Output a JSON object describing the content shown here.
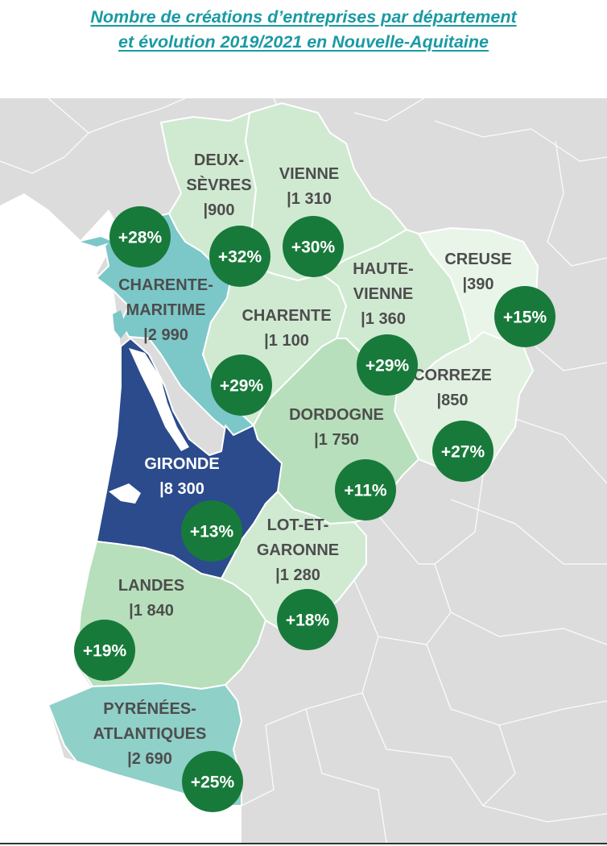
{
  "title": {
    "line1": "Nombre de créations d’entreprises par département",
    "line2": "et évolution 2019/2021 en Nouvelle-Aquitaine"
  },
  "colors": {
    "background_land": "#dcdcdc",
    "borders": "#ffffff",
    "badge": "#187a3a",
    "title": "#1a9aa3",
    "label": "#4d4d4d"
  },
  "departments": [
    {
      "id": "deux-sevres",
      "name_lines": [
        "DEUX-",
        "SÈVRES"
      ],
      "value": "|900",
      "growth": "+28%",
      "color": "#d0ead2"
    },
    {
      "id": "vienne",
      "name_lines": [
        "VIENNE"
      ],
      "value": "|1 310",
      "growth": "+32%",
      "color": "#d0ead2"
    },
    {
      "id": "charente-maritime",
      "name_lines": [
        "CHARENTE-",
        "MARITIME"
      ],
      "value": "|2 990",
      "growth": "+30%",
      "color": "#7cc8c9"
    },
    {
      "id": "charente",
      "name_lines": [
        "CHARENTE"
      ],
      "value": "|1 100",
      "growth": "+29%",
      "color": "#d0ead2"
    },
    {
      "id": "haute-vienne",
      "name_lines": [
        "HAUTE-",
        "VIENNE"
      ],
      "value": "|1 360",
      "growth": "+29%",
      "color": "#d0ead2"
    },
    {
      "id": "creuse",
      "name_lines": [
        "CREUSE"
      ],
      "value": "|390",
      "growth": "+15%",
      "color": "#eaf5ea"
    },
    {
      "id": "correze",
      "name_lines": [
        "CORREZE"
      ],
      "value": "|850",
      "growth": "+27%",
      "color": "#e1f0e0"
    },
    {
      "id": "dordogne",
      "name_lines": [
        "DORDOGNE"
      ],
      "value": "|1 750",
      "growth": "+11%",
      "color": "#b7dfbb"
    },
    {
      "id": "gironde",
      "name_lines": [
        "GIRONDE"
      ],
      "value": "|8 300",
      "growth": "+13%",
      "color": "#2b4b8c"
    },
    {
      "id": "lot-et-garonne",
      "name_lines": [
        "LOT-ET-",
        "GARONNE"
      ],
      "value": "|1 280",
      "growth": "+18%",
      "color": "#d0ead2"
    },
    {
      "id": "landes",
      "name_lines": [
        "LANDES"
      ],
      "value": "|1 840",
      "growth": "+19%",
      "color": "#b7dfbb"
    },
    {
      "id": "pyrenees-atlantiques",
      "name_lines": [
        "PYRÉNÉES-",
        "ATLANTIQUES"
      ],
      "value": "|2 690",
      "growth": "+25%",
      "color": "#8fd0c8"
    }
  ]
}
